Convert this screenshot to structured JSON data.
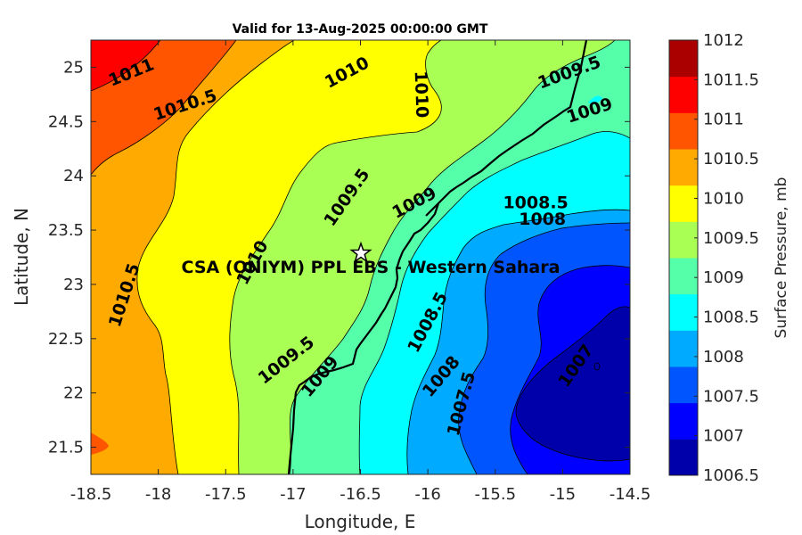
{
  "chart_data": {
    "type": "contour",
    "title": "Valid for 13-Aug-2025 00:00:00 GMT",
    "xlabel": "Longitude, E",
    "ylabel": "Latitude, N",
    "colorbar_label": "Surface Pressure, mb",
    "xlim": [
      -18.5,
      -14.5
    ],
    "ylim": [
      21.25,
      25.25
    ],
    "x_ticks": [
      "-18.5",
      "-18",
      "-17.5",
      "-17",
      "-16.5",
      "-16",
      "-15.5",
      "-15",
      "-14.5"
    ],
    "y_ticks": [
      "21.5",
      "22",
      "22.5",
      "23",
      "23.5",
      "24",
      "24.5",
      "25"
    ],
    "levels": [
      "1006.5",
      "1007",
      "1007.5",
      "1008",
      "1008.5",
      "1009",
      "1009.5",
      "1010",
      "1010.5",
      "1011",
      "1011.5",
      "1012"
    ],
    "level_colors": [
      "#0000aa",
      "#0000ff",
      "#0055ff",
      "#00aaff",
      "#00ffff",
      "#55ffaa",
      "#aaff55",
      "#ffff00",
      "#ffaa00",
      "#ff5500",
      "#ff0000",
      "#aa0000"
    ],
    "contour_labels": [
      {
        "text": "1011",
        "lon": -18.2,
        "lat": 24.95,
        "angle": -22
      },
      {
        "text": "1010.5",
        "lon": -17.8,
        "lat": 24.65,
        "angle": -18
      },
      {
        "text": "1010",
        "lon": -16.6,
        "lat": 24.95,
        "angle": -28
      },
      {
        "text": "1010",
        "lon": -16.05,
        "lat": 24.75,
        "angle": 88
      },
      {
        "text": "1009.5",
        "lon": -14.95,
        "lat": 24.95,
        "angle": -20
      },
      {
        "text": "1009",
        "lon": -14.8,
        "lat": 24.6,
        "angle": -18
      },
      {
        "text": "1009.5",
        "lon": -16.6,
        "lat": 23.8,
        "angle": -55
      },
      {
        "text": "1009",
        "lon": -16.1,
        "lat": 23.75,
        "angle": -28
      },
      {
        "text": "1008.5",
        "lon": -15.2,
        "lat": 23.75,
        "angle": 0
      },
      {
        "text": "1008",
        "lon": -15.15,
        "lat": 23.6,
        "angle": 0
      },
      {
        "text": "1010",
        "lon": -17.3,
        "lat": 23.2,
        "angle": -62
      },
      {
        "text": "1010.5",
        "lon": -18.25,
        "lat": 22.9,
        "angle": -72
      },
      {
        "text": "1008.5",
        "lon": -16.0,
        "lat": 22.65,
        "angle": -62
      },
      {
        "text": "1009.5",
        "lon": -17.05,
        "lat": 22.3,
        "angle": -38
      },
      {
        "text": "1009",
        "lon": -16.8,
        "lat": 22.15,
        "angle": -50
      },
      {
        "text": "1008",
        "lon": -15.9,
        "lat": 22.15,
        "angle": -50
      },
      {
        "text": "1007.5",
        "lon": -15.75,
        "lat": 21.9,
        "angle": -75
      },
      {
        "text": "1007",
        "lon": -14.9,
        "lat": 22.25,
        "angle": -55
      }
    ],
    "station": {
      "name": "CSA (ONIYM) PPL EBS - Western Sahara",
      "lon": -16.5,
      "lat": 23.3
    },
    "legend": "none",
    "grid": false
  }
}
